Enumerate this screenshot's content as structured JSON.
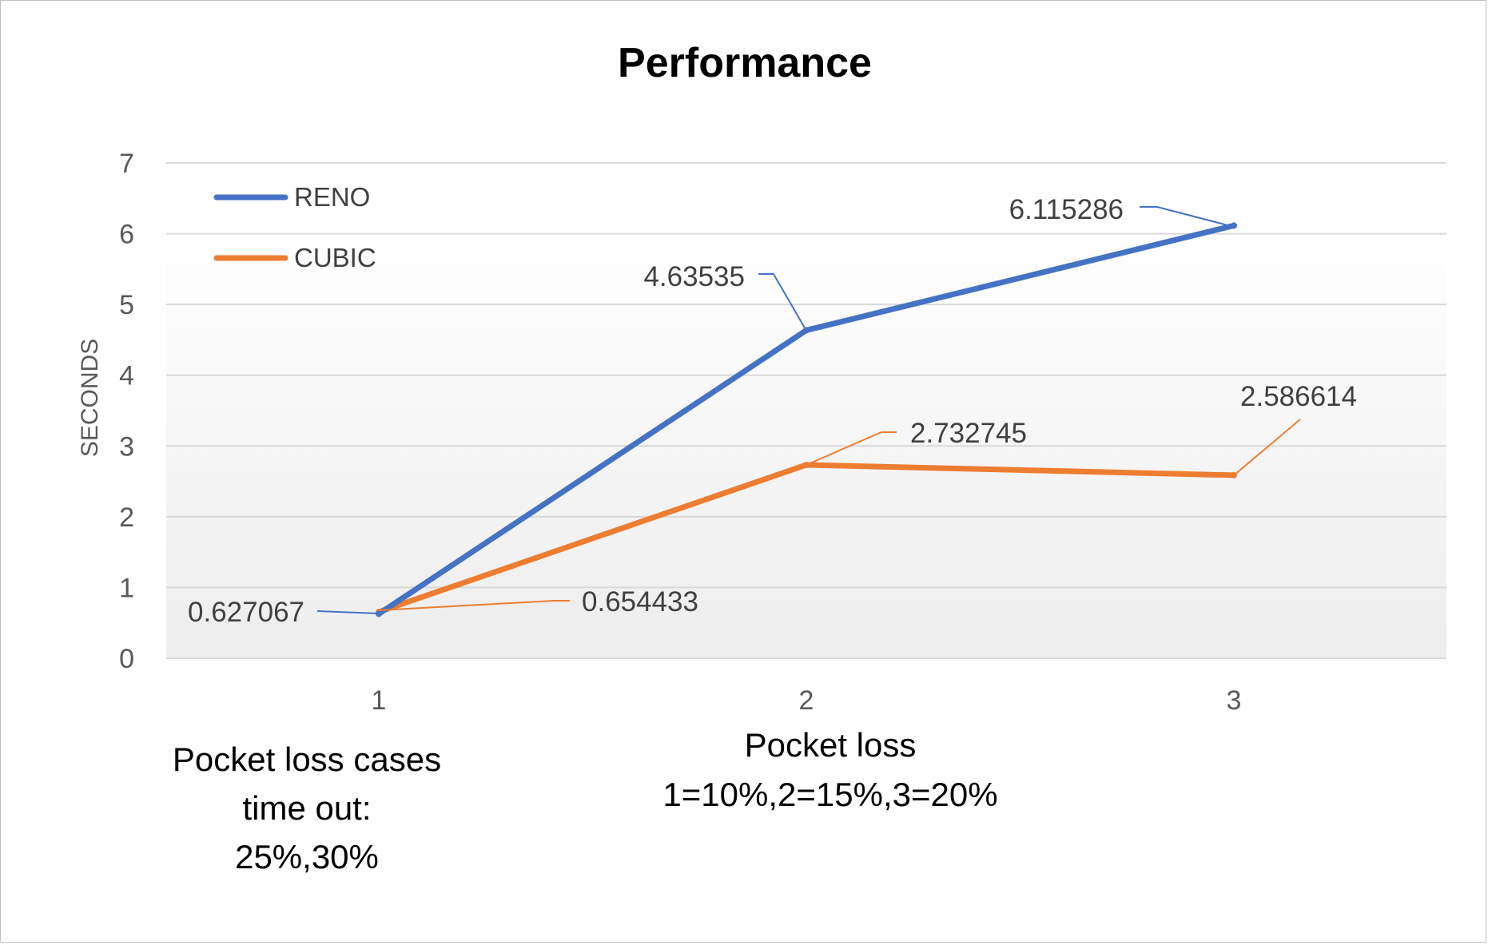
{
  "chart_data": {
    "type": "line",
    "title": "Performance",
    "xlabel": "",
    "ylabel": "SECONDS",
    "categories": [
      "1",
      "2",
      "3"
    ],
    "ylim": [
      0,
      7
    ],
    "yticks": [
      "0",
      "1",
      "2",
      "3",
      "4",
      "5",
      "6",
      "7"
    ],
    "grid": true,
    "legend_position": "top-left",
    "series": [
      {
        "name": "RENO",
        "values": [
          0.627067,
          4.63535,
          6.115286
        ],
        "labels": [
          "0.627067",
          "4.63535",
          "6.115286"
        ],
        "color": "#4472C4"
      },
      {
        "name": "CUBIC",
        "values": [
          0.654433,
          2.732745,
          2.586614
        ],
        "labels": [
          "0.654433",
          "2.732745",
          "2.586614"
        ],
        "color": "#ED7D31"
      }
    ],
    "annotations": {
      "left": [
        "Pocket loss cases",
        "time out:",
        "25%,30%"
      ],
      "center": [
        "Pocket loss",
        "1=10%,2=15%,3=20%"
      ]
    }
  }
}
